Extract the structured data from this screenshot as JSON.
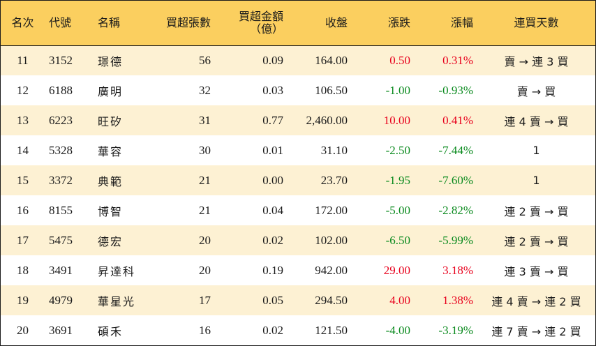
{
  "headers": {
    "rank": "名次",
    "code": "代號",
    "name": "名稱",
    "net_lots": "買超張數",
    "net_amount_line1": "買超金額",
    "net_amount_line2": "（億）",
    "close": "收盤",
    "change": "漲跌",
    "pct": "漲幅",
    "streak": "連買天數"
  },
  "colors": {
    "header_bg": "#fbcf5f",
    "stripe_bg": "#fdf1d3",
    "up": "#e8001c",
    "down": "#0a8a1e"
  },
  "rows": [
    {
      "rank": "11",
      "code": "3152",
      "name": "璟德",
      "lots": "56",
      "amount": "0.09",
      "close": "164.00",
      "change": "0.50",
      "pct": "0.31%",
      "streak": "賣 → 連 3 買",
      "dir": "up"
    },
    {
      "rank": "12",
      "code": "6188",
      "name": "廣明",
      "lots": "32",
      "amount": "0.03",
      "close": "106.50",
      "change": "-1.00",
      "pct": "-0.93%",
      "streak": "賣 → 買",
      "dir": "down"
    },
    {
      "rank": "13",
      "code": "6223",
      "name": "旺矽",
      "lots": "31",
      "amount": "0.77",
      "close": "2,460.00",
      "change": "10.00",
      "pct": "0.41%",
      "streak": "連 4 賣 → 買",
      "dir": "up"
    },
    {
      "rank": "14",
      "code": "5328",
      "name": "華容",
      "lots": "30",
      "amount": "0.01",
      "close": "31.10",
      "change": "-2.50",
      "pct": "-7.44%",
      "streak": "1",
      "dir": "down"
    },
    {
      "rank": "15",
      "code": "3372",
      "name": "典範",
      "lots": "21",
      "amount": "0.00",
      "close": "23.70",
      "change": "-1.95",
      "pct": "-7.60%",
      "streak": "1",
      "dir": "down"
    },
    {
      "rank": "16",
      "code": "8155",
      "name": "博智",
      "lots": "21",
      "amount": "0.04",
      "close": "172.00",
      "change": "-5.00",
      "pct": "-2.82%",
      "streak": "連 2 賣 → 買",
      "dir": "down"
    },
    {
      "rank": "17",
      "code": "5475",
      "name": "德宏",
      "lots": "20",
      "amount": "0.02",
      "close": "102.00",
      "change": "-6.50",
      "pct": "-5.99%",
      "streak": "連 2 賣 → 買",
      "dir": "down"
    },
    {
      "rank": "18",
      "code": "3491",
      "name": "昇達科",
      "lots": "20",
      "amount": "0.19",
      "close": "942.00",
      "change": "29.00",
      "pct": "3.18%",
      "streak": "連 3 賣 → 買",
      "dir": "up"
    },
    {
      "rank": "19",
      "code": "4979",
      "name": "華星光",
      "lots": "17",
      "amount": "0.05",
      "close": "294.50",
      "change": "4.00",
      "pct": "1.38%",
      "streak": "連 4 賣 → 連 2 買",
      "dir": "up"
    },
    {
      "rank": "20",
      "code": "3691",
      "name": "碩禾",
      "lots": "16",
      "amount": "0.02",
      "close": "121.50",
      "change": "-4.00",
      "pct": "-3.19%",
      "streak": "連 7 賣 → 連 2 買",
      "dir": "down"
    }
  ]
}
